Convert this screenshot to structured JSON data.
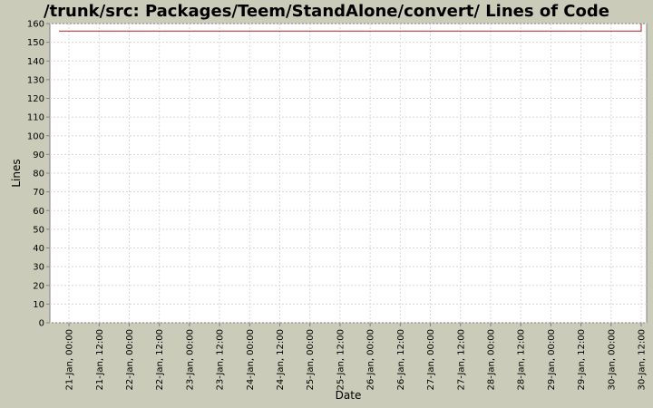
{
  "chart_data": {
    "type": "line",
    "title": "/trunk/src: Packages/Teem/StandAlone/convert/ Lines of Code",
    "xlabel": "Date",
    "ylabel": "Lines",
    "ylim": [
      0,
      160
    ],
    "yticks": [
      0,
      10,
      20,
      30,
      40,
      50,
      60,
      70,
      80,
      90,
      100,
      110,
      120,
      130,
      140,
      150,
      160
    ],
    "xlim": [
      "2006-01-20T20:00",
      "2006-01-30T12:00"
    ],
    "xticks": [
      "21-Jan, 00:00",
      "21-Jan, 12:00",
      "22-Jan, 00:00",
      "22-Jan, 12:00",
      "23-Jan, 00:00",
      "23-Jan, 12:00",
      "24-Jan, 00:00",
      "24-Jan, 12:00",
      "25-Jan, 00:00",
      "25-Jan, 12:00",
      "26-Jan, 00:00",
      "26-Jan, 12:00",
      "27-Jan, 00:00",
      "27-Jan, 12:00",
      "28-Jan, 00:00",
      "28-Jan, 12:00",
      "29-Jan, 00:00",
      "29-Jan, 12:00",
      "30-Jan, 00:00",
      "30-Jan, 12:00"
    ],
    "grid": true,
    "series": [
      {
        "color": "#b22222",
        "points": [
          {
            "x": "2006-01-20T20:00",
            "y": 156
          },
          {
            "x": "2006-01-30T12:00",
            "y": 156
          },
          {
            "x": "2006-01-30T12:00",
            "y": 160
          }
        ]
      }
    ]
  }
}
